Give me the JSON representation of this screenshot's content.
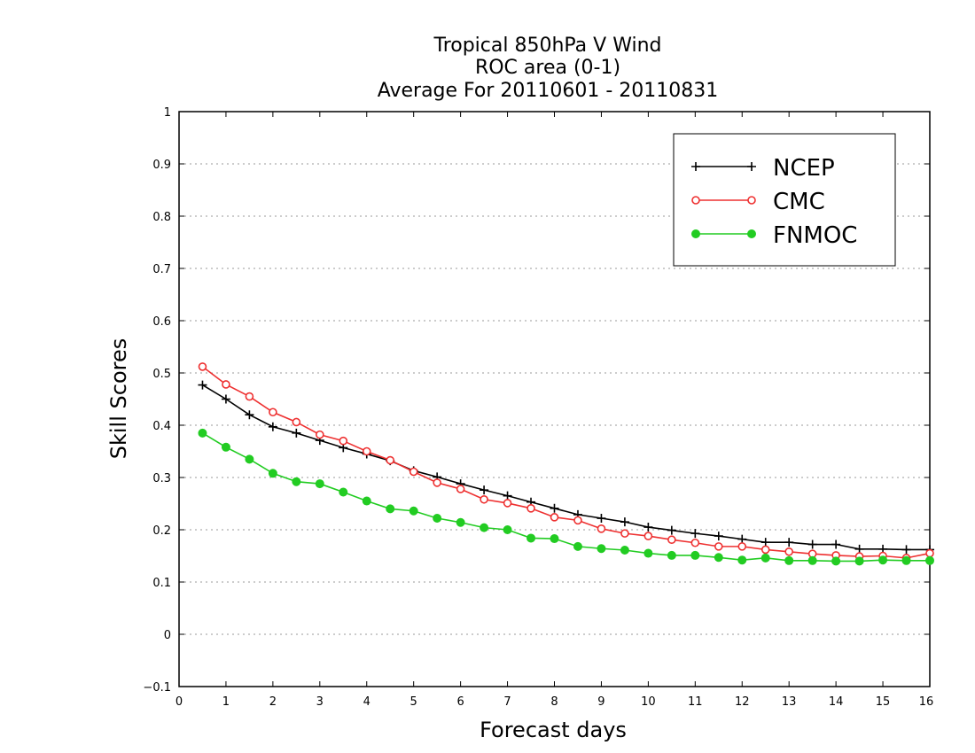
{
  "chart_data": {
    "type": "line",
    "title_lines": [
      "Tropical 850hPa V Wind",
      "ROC area (0-1)",
      "Average For 20110601 - 20110831"
    ],
    "xlabel": "Forecast days",
    "ylabel": "Skill Scores",
    "xlim": [
      0,
      16
    ],
    "ylim": [
      -0.1,
      1
    ],
    "xticks": [
      "0",
      "1",
      "2",
      "3",
      "4",
      "5",
      "6",
      "7",
      "8",
      "9",
      "10",
      "11",
      "12",
      "13",
      "14",
      "15",
      "16"
    ],
    "yticks": [
      "−0.1",
      "0",
      "0.1",
      "0.2",
      "0.3",
      "0.4",
      "0.5",
      "0.6",
      "0.7",
      "0.8",
      "0.9",
      "1"
    ],
    "ytick_values": [
      -0.1,
      0,
      0.1,
      0.2,
      0.3,
      0.4,
      0.5,
      0.6,
      0.7,
      0.8,
      0.9,
      1
    ],
    "grid": "horizontal-dotted",
    "legend_position": "top-right",
    "x": [
      0.5,
      1,
      1.5,
      2,
      2.5,
      3,
      3.5,
      4,
      4.5,
      5,
      5.5,
      6,
      6.5,
      7,
      7.5,
      8,
      8.5,
      9,
      9.5,
      10,
      10.5,
      11,
      11.5,
      12,
      12.5,
      13,
      13.5,
      14,
      14.5,
      15,
      15.5,
      16
    ],
    "series": [
      {
        "name": "NCEP",
        "color": "#000000",
        "marker": "plus",
        "values": [
          0.477,
          0.45,
          0.42,
          0.397,
          0.385,
          0.371,
          0.357,
          0.345,
          0.332,
          0.313,
          0.301,
          0.288,
          0.276,
          0.265,
          0.253,
          0.241,
          0.229,
          0.222,
          0.215,
          0.205,
          0.199,
          0.193,
          0.188,
          0.182,
          0.176,
          0.176,
          0.172,
          0.172,
          0.163,
          0.163,
          0.162,
          0.162
        ]
      },
      {
        "name": "CMC",
        "color": "#ee3030",
        "marker": "open-circle",
        "values": [
          0.512,
          0.478,
          0.455,
          0.425,
          0.406,
          0.382,
          0.37,
          0.35,
          0.333,
          0.311,
          0.29,
          0.278,
          0.258,
          0.251,
          0.241,
          0.224,
          0.218,
          0.202,
          0.193,
          0.188,
          0.181,
          0.175,
          0.168,
          0.168,
          0.162,
          0.158,
          0.154,
          0.151,
          0.149,
          0.15,
          0.146,
          0.155
        ]
      },
      {
        "name": "FNMOC",
        "color": "#22cc22",
        "marker": "filled-circle",
        "values": [
          0.385,
          0.358,
          0.335,
          0.308,
          0.292,
          0.288,
          0.272,
          0.255,
          0.24,
          0.236,
          0.222,
          0.214,
          0.204,
          0.2,
          0.184,
          0.183,
          0.168,
          0.164,
          0.161,
          0.155,
          0.151,
          0.151,
          0.147,
          0.142,
          0.146,
          0.141,
          0.141,
          0.14,
          0.14,
          0.142,
          0.141,
          0.141
        ]
      }
    ]
  }
}
